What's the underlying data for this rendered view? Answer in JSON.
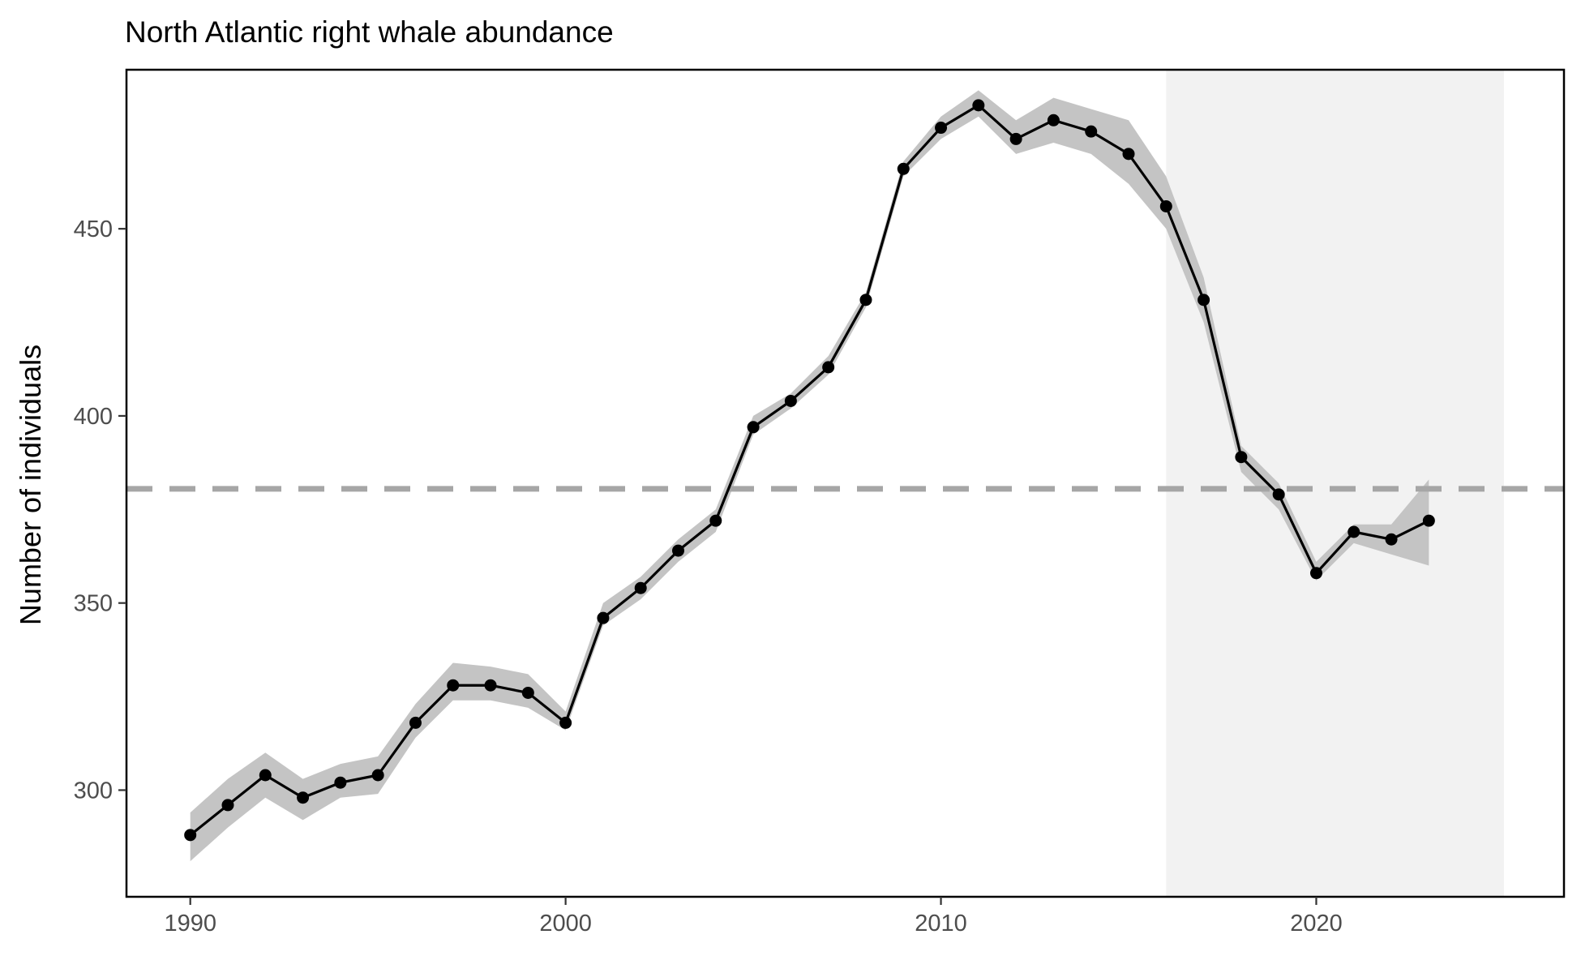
{
  "chart_data": {
    "type": "line",
    "title": "North Atlantic right whale abundance",
    "xlabel": "",
    "ylabel": "Number of individuals",
    "xlim": [
      1988.3,
      2026.6
    ],
    "ylim": [
      271.5,
      492.5
    ],
    "x_ticks": [
      1990,
      2000,
      2010,
      2020
    ],
    "y_ticks": [
      300,
      350,
      400,
      450
    ],
    "reference_line": {
      "y": 380.5,
      "style": "dashed",
      "color": "#a6a6a6"
    },
    "shaded_period": {
      "x_start": 2016,
      "x_end": 2025,
      "color": "#f2f2f2"
    },
    "grid": false,
    "series": [
      {
        "x": [
          1990,
          1991,
          1992,
          1993,
          1994,
          1995,
          1996,
          1997,
          1998,
          1999,
          2000,
          2001,
          2002,
          2003,
          2004,
          2005,
          2006,
          2007,
          2008,
          2009,
          2010,
          2011,
          2012,
          2013,
          2014,
          2015,
          2016,
          2017,
          2018,
          2019,
          2020,
          2021,
          2022,
          2023
        ],
        "values": [
          288,
          296,
          304,
          298,
          302,
          304,
          318,
          328,
          328,
          326,
          318,
          346,
          354,
          364,
          372,
          397,
          404,
          413,
          431,
          466,
          477,
          483,
          474,
          479,
          476,
          470,
          456,
          431,
          389,
          379,
          358,
          369,
          367,
          372
        ],
        "lower": [
          281,
          290,
          298,
          292,
          298,
          299,
          314,
          324,
          324,
          322,
          316,
          344,
          351,
          361,
          369,
          395,
          402,
          411,
          429,
          464,
          474,
          480,
          470,
          473,
          470,
          462,
          450,
          425,
          385,
          375,
          356,
          366,
          363,
          360
        ],
        "upper": [
          294,
          303,
          310,
          303,
          307,
          309,
          323,
          334,
          333,
          331,
          321,
          350,
          357,
          367,
          375,
          400,
          406,
          416,
          433,
          468,
          480,
          487,
          479,
          485,
          482,
          479,
          464,
          437,
          392,
          382,
          361,
          371,
          371,
          383
        ],
        "line_color": "#000000",
        "band_color": "#c4c4c4"
      }
    ]
  }
}
